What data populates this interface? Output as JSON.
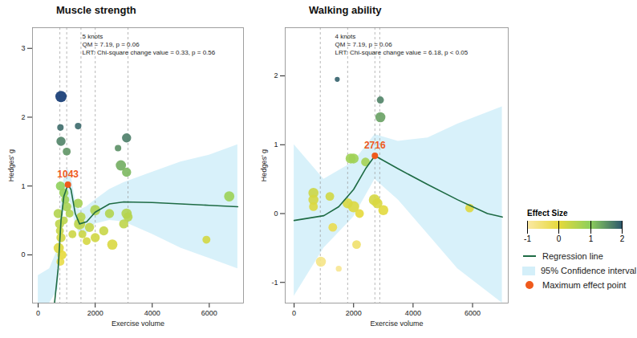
{
  "chart_data": [
    {
      "type": "scatter",
      "title": "Muscle strength",
      "xlabel": "Exercise volume",
      "ylabel": "Hedges' g",
      "xlim": [
        -200,
        7200
      ],
      "xticks": [
        0,
        2000,
        4000,
        6000
      ],
      "ylim": [
        -0.7,
        3.3
      ],
      "yticks": [
        0,
        1,
        2,
        3
      ],
      "annotations": [
        "5 knots",
        "QM = 7.19, p = 0.06",
        "LRT: Chi-square change value = 0.33, p = 0.56"
      ],
      "knots": [
        760,
        1000,
        1500,
        2000,
        3150
      ],
      "max_point": {
        "x": 1043,
        "y": 1.02
      },
      "points": {
        "x": [
          800,
          780,
          800,
          1000,
          1400,
          780,
          900,
          950,
          700,
          750,
          760,
          800,
          720,
          830,
          780,
          900,
          1000,
          1100,
          1200,
          1400,
          1450,
          1500,
          1550,
          1700,
          1800,
          2000,
          2000,
          2300,
          2500,
          2600,
          2900,
          2800,
          3100,
          3100,
          3100,
          3150,
          3000,
          5900,
          6700
        ],
        "values": [
          2.3,
          1.85,
          1.65,
          1.5,
          1.87,
          1.0,
          0.9,
          0.8,
          0.6,
          0.45,
          0.35,
          0.25,
          0.1,
          0.0,
          -0.1,
          0.5,
          0.7,
          0.6,
          0.3,
          0.75,
          0.45,
          0.55,
          0.3,
          0.2,
          0.4,
          0.65,
          0.25,
          0.35,
          0.6,
          0.15,
          1.3,
          1.55,
          1.7,
          1.2,
          0.6,
          0.55,
          0.45,
          0.22,
          0.85
        ],
        "sizes": [
          3,
          1,
          2,
          1.5,
          1,
          2,
          2,
          1.5,
          2,
          2,
          1.5,
          2,
          2.5,
          2,
          1.5,
          1.5,
          2,
          1.5,
          1.5,
          2,
          3,
          2,
          1.5,
          1.5,
          2,
          2.5,
          2,
          2,
          2,
          2.5,
          2.5,
          1,
          2,
          2,
          2.5,
          2,
          2,
          1.5,
          2.5
        ]
      },
      "regression_line": {
        "x": [
          560,
          700,
          800,
          900,
          1043,
          1150,
          1300,
          1450,
          1700,
          2000,
          2500,
          3000,
          4000,
          5000,
          6000,
          7000
        ],
        "values": [
          -0.75,
          -0.2,
          0.5,
          0.85,
          1.02,
          0.95,
          0.6,
          0.45,
          0.48,
          0.62,
          0.74,
          0.77,
          0.76,
          0.74,
          0.72,
          0.7
        ]
      },
      "confidence_interval": {
        "x": [
          0,
          400,
          700,
          800,
          900,
          1043,
          1150,
          1300,
          1450,
          1700,
          2000,
          2500,
          3000,
          4000,
          5000,
          6000,
          7000
        ],
        "lower": [
          -0.7,
          -0.7,
          -0.5,
          0.25,
          0.6,
          0.8,
          0.75,
          0.45,
          0.3,
          0.3,
          0.45,
          0.5,
          0.48,
          0.3,
          0.1,
          -0.05,
          -0.2
        ],
        "upper": [
          -0.3,
          -0.2,
          0.1,
          0.75,
          1.1,
          1.25,
          1.15,
          0.8,
          0.65,
          0.7,
          0.8,
          0.95,
          1.05,
          1.2,
          1.35,
          1.45,
          1.6
        ]
      }
    },
    {
      "type": "scatter",
      "title": "Walking ability",
      "xlabel": "Exercise volume",
      "ylabel": "Hedges' g",
      "xlim": [
        -300,
        7200
      ],
      "xticks": [
        0,
        2000,
        4000,
        6000
      ],
      "ylim": [
        -1.3,
        2.7
      ],
      "yticks": [
        -1,
        0,
        1,
        2
      ],
      "annotations": [
        "4 knots",
        "QM = 7.19, p = 0.06",
        "LRT: Chi-square change value = 6.18, p < 0.05"
      ],
      "knots": [
        880,
        1800,
        2716,
        2880
      ],
      "max_point": {
        "x": 2716,
        "y": 0.84
      },
      "points": {
        "x": [
          900,
          650,
          650,
          650,
          1200,
          1300,
          1500,
          1450,
          1900,
          2000,
          2000,
          1800,
          2100,
          2200,
          2400,
          2700,
          2800,
          3000,
          2900,
          2900,
          5900
        ],
        "values": [
          -0.7,
          0.3,
          0.2,
          0.1,
          0.25,
          -0.2,
          -0.8,
          1.95,
          0.8,
          0.8,
          0.1,
          0.15,
          -0.45,
          0.0,
          0.75,
          0.2,
          0.15,
          0.05,
          1.4,
          1.65,
          0.08
        ],
        "sizes": [
          2,
          2,
          2,
          1.5,
          1.5,
          1.5,
          0.7,
          0.5,
          2,
          2,
          2.5,
          2,
          1.5,
          1.5,
          1.5,
          2.5,
          2,
          2,
          2,
          1,
          1.5
        ]
      },
      "regression_line": {
        "x": [
          0,
          1000,
          1500,
          2000,
          2400,
          2716,
          3500,
          4500,
          5500,
          6500,
          7000
        ],
        "values": [
          -0.1,
          -0.03,
          0.1,
          0.35,
          0.65,
          0.84,
          0.65,
          0.42,
          0.2,
          0.0,
          -0.05
        ]
      },
      "confidence_interval": {
        "x": [
          0,
          1000,
          2000,
          2716,
          3500,
          4500,
          5500,
          7000
        ],
        "lower": [
          -1.2,
          -0.5,
          -0.05,
          0.5,
          0.2,
          -0.3,
          -0.8,
          -1.3
        ],
        "upper": [
          1.0,
          0.5,
          0.75,
          1.15,
          1.05,
          1.1,
          1.3,
          1.55
        ]
      }
    }
  ],
  "shared_legend": {
    "title": "Effect Size",
    "colorbar_range": [
      -1,
      2
    ],
    "colorbar_ticks": [
      -1,
      0,
      1,
      2
    ],
    "colors": [
      "#fbe9a6",
      "#e6d93c",
      "#8fd05c",
      "#2e5a6d"
    ],
    "items": [
      {
        "name": "Regression line",
        "color": "#1e6b44",
        "marker": "line"
      },
      {
        "name": "95% Confidence interval",
        "color": "#d4eff9",
        "marker": "square"
      },
      {
        "name": "Maximum effect point",
        "color": "#ef5a1c",
        "marker": "circle"
      }
    ]
  }
}
